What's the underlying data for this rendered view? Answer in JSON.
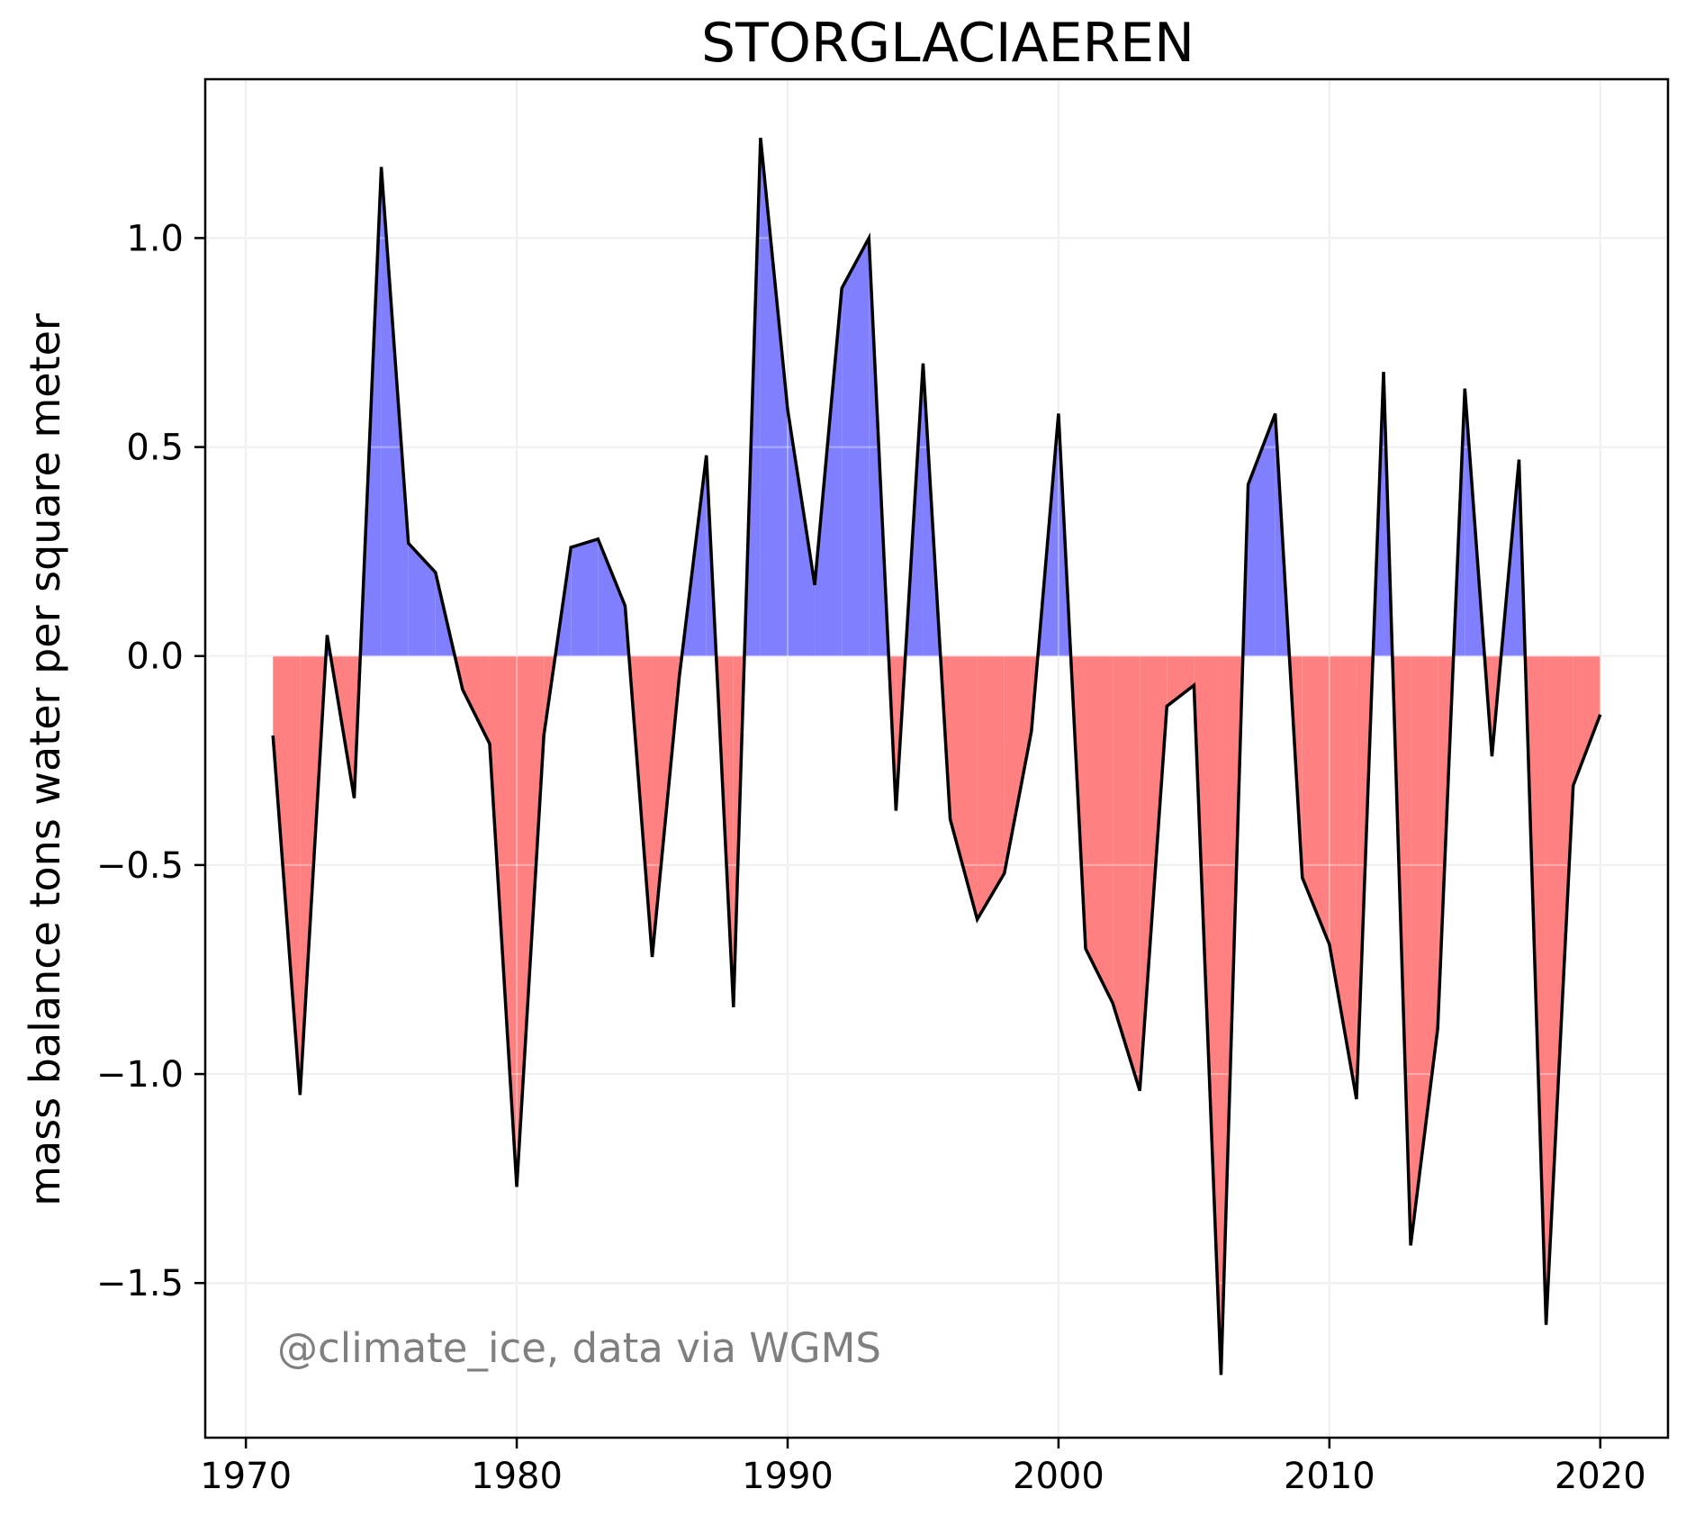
{
  "chart_data": {
    "type": "area",
    "title": "STORGLACIAEREN",
    "xlabel": "",
    "ylabel": "mass balance tons water per square meter",
    "xlim": [
      1968.5,
      2022.5
    ],
    "ylim": [
      -1.87,
      1.38
    ],
    "grid": true,
    "xticks": [
      1970,
      1980,
      1990,
      2000,
      2010,
      2020
    ],
    "yticks": [
      1.0,
      0.5,
      0.0,
      -0.5,
      -1.0,
      -1.5
    ],
    "ytick_labels": [
      "1.0",
      "0.5",
      "0.0",
      "−0.5",
      "−1.0",
      "−1.5"
    ],
    "annotation": "@climate_ice, data via WGMS",
    "colors": {
      "positive": "#8080ff",
      "negative": "#ff8080",
      "line": "#000000",
      "grid": "#e6e6e6",
      "annotation": "#7f7f7f"
    },
    "x": [
      1971,
      1972,
      1973,
      1974,
      1975,
      1976,
      1977,
      1978,
      1979,
      1980,
      1981,
      1982,
      1983,
      1984,
      1985,
      1986,
      1987,
      1988,
      1989,
      1990,
      1991,
      1992,
      1993,
      1994,
      1995,
      1996,
      1997,
      1998,
      1999,
      2000,
      2001,
      2002,
      2003,
      2004,
      2005,
      2006,
      2007,
      2008,
      2009,
      2010,
      2011,
      2012,
      2013,
      2014,
      2015,
      2016,
      2017,
      2018,
      2019,
      2020
    ],
    "values": [
      -0.19,
      -1.05,
      0.05,
      -0.34,
      1.17,
      0.27,
      0.2,
      -0.08,
      -0.21,
      -1.27,
      -0.19,
      0.26,
      0.28,
      0.12,
      -0.72,
      -0.05,
      0.48,
      -0.84,
      1.24,
      0.59,
      0.17,
      0.88,
      1.0,
      -0.37,
      0.7,
      -0.39,
      -0.63,
      -0.52,
      -0.18,
      0.58,
      -0.7,
      -0.83,
      -1.04,
      -0.12,
      -0.07,
      -1.72,
      0.41,
      0.58,
      -0.53,
      -0.69,
      -1.06,
      0.68,
      -1.41,
      -0.89,
      0.64,
      -0.24,
      0.47,
      -1.6,
      -0.31,
      -0.14
    ]
  }
}
